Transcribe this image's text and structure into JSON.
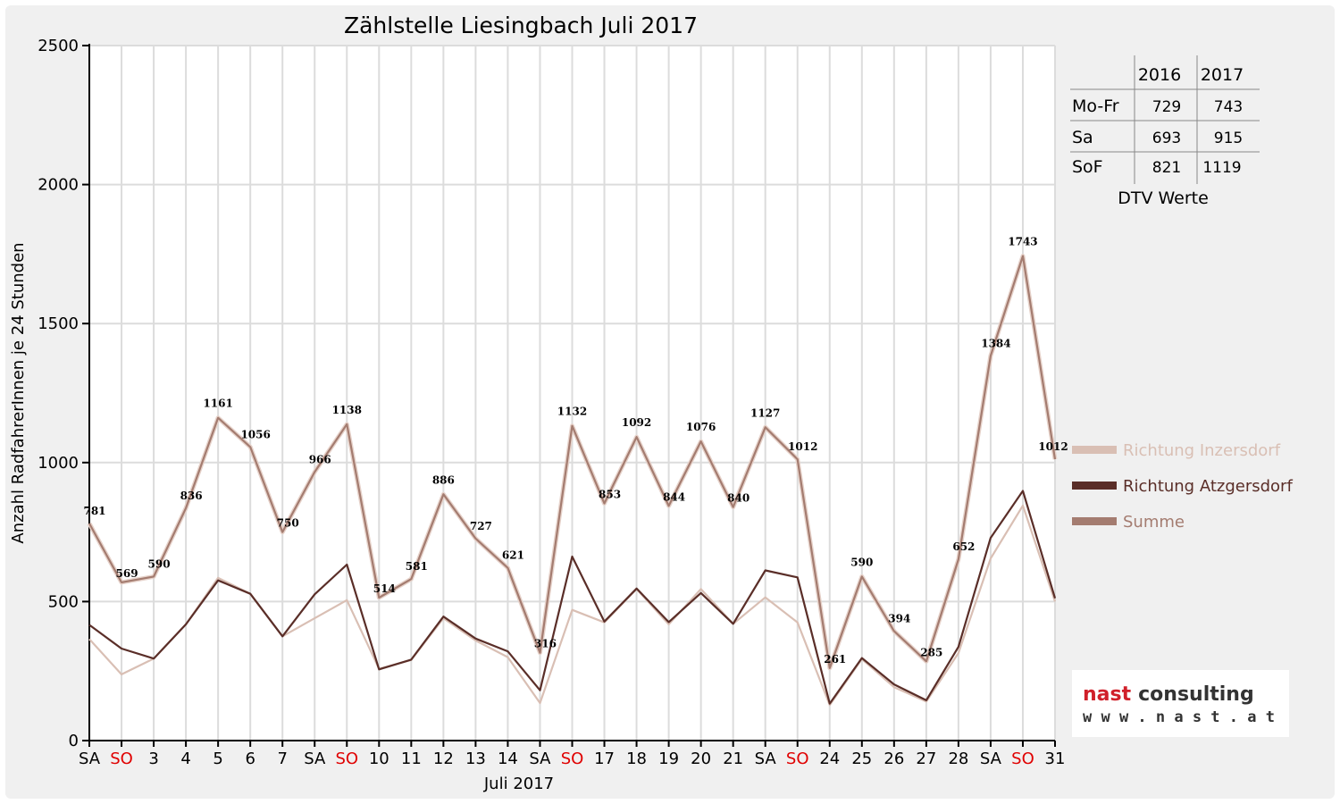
{
  "chart_data": {
    "type": "line",
    "title": "Zählstelle Liesingbach Juli 2017",
    "xlabel": "Juli 2017",
    "ylabel": "Anzahl RadfahrerInnen je 24 Stunden",
    "ylim": [
      0,
      2500
    ],
    "yticks": [
      0,
      500,
      1000,
      1500,
      2000,
      2500
    ],
    "grid": true,
    "legend_position": "right",
    "categories": [
      "SA",
      "SO",
      "3",
      "4",
      "5",
      "6",
      "7",
      "SA",
      "SO",
      "10",
      "11",
      "12",
      "13",
      "14",
      "SA",
      "SO",
      "17",
      "18",
      "19",
      "20",
      "21",
      "SA",
      "SO",
      "24",
      "25",
      "26",
      "27",
      "28",
      "SA",
      "SO",
      "31"
    ],
    "sunday_label": "SO",
    "sunday_color": "#e00000",
    "series": [
      {
        "name": "Richtung Inzersdorf",
        "color": "#d9bfb4",
        "values": [
          365,
          238,
          295,
          418,
          585,
          528,
          375,
          440,
          505,
          258,
          290,
          440,
          360,
          300,
          135,
          470,
          425,
          545,
          418,
          545,
          420,
          515,
          425,
          128,
          293,
          192,
          140,
          315,
          655,
          845,
          500
        ]
      },
      {
        "name": "Richtung Atzgersdorf",
        "color": "#5a2e28",
        "values": [
          416,
          331,
          295,
          418,
          576,
          528,
          375,
          526,
          633,
          256,
          291,
          446,
          367,
          321,
          181,
          662,
          428,
          547,
          426,
          531,
          420,
          612,
          587,
          133,
          297,
          202,
          145,
          337,
          729,
          898,
          512
        ]
      },
      {
        "name": "Summe",
        "color": "#a47c70",
        "values": [
          781,
          569,
          590,
          836,
          1161,
          1056,
          750,
          966,
          1138,
          514,
          581,
          886,
          727,
          621,
          316,
          1132,
          853,
          1092,
          844,
          1076,
          840,
          1127,
          1012,
          261,
          590,
          394,
          285,
          652,
          1384,
          1743,
          1012
        ]
      }
    ]
  },
  "dtv_table": {
    "caption": "DTV Werte",
    "columns": [
      "2016",
      "2017"
    ],
    "rows": [
      {
        "label": "Mo-Fr",
        "v2016": "729",
        "v2017": "743"
      },
      {
        "label": "Sa",
        "v2016": "693",
        "v2017": "915"
      },
      {
        "label": "SoF",
        "v2016": "821",
        "v2017": "1119"
      }
    ]
  },
  "logo": {
    "brand_word1": "nast",
    "brand_word2": "consulting",
    "url": "w w w . n a s t . a t",
    "color_red": "#d0202a",
    "color_dark": "#333333"
  }
}
